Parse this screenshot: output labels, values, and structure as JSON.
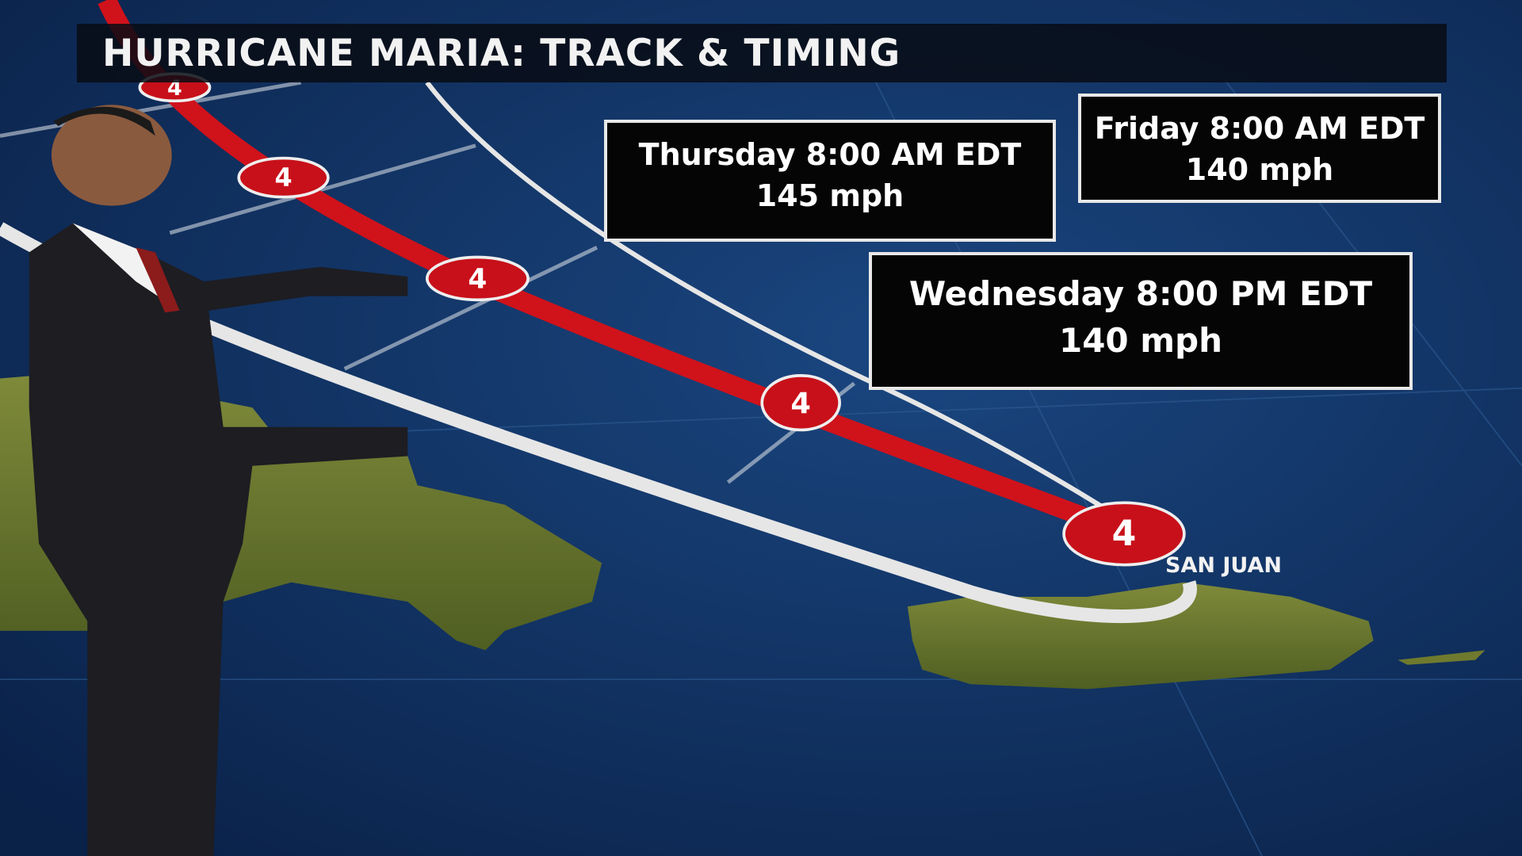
{
  "title": "HURRICANE MARIA: TRACK & TIMING",
  "forecast_points": [
    {
      "day_time": "Friday 8:00 AM EDT",
      "wind": "140 mph"
    },
    {
      "day_time": "Thursday 8:00 AM EDT",
      "wind": "145 mph"
    },
    {
      "day_time": "Wednesday 8:00 PM EDT",
      "wind": "140 mph"
    }
  ],
  "city_label": "SAN JUAN",
  "storm_category": "4",
  "colors": {
    "ocean": "#0d2a55",
    "track": "#d0121b",
    "cone": "#e8e8e8",
    "land": "#6f7a2e"
  }
}
